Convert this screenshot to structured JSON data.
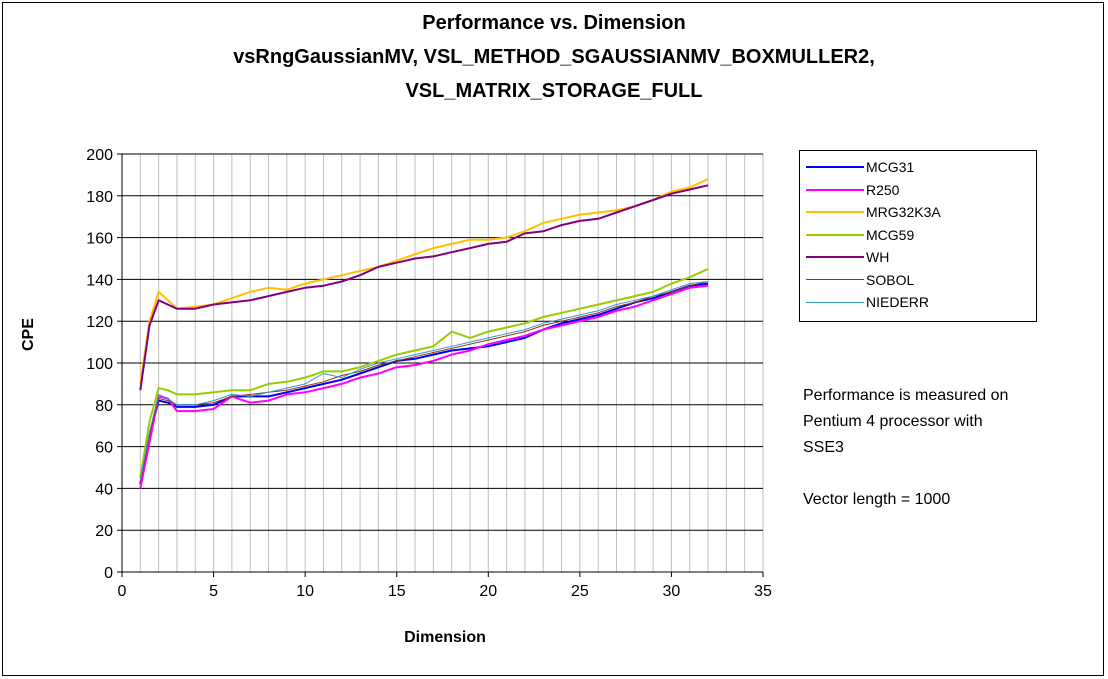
{
  "chart_data": {
    "type": "line",
    "title_lines": [
      "Performance vs. Dimension",
      "vsRngGaussianMV, VSL_METHOD_SGAUSSIANMV_BOXMULLER2,",
      "VSL_MATRIX_STORAGE_FULL"
    ],
    "xlabel": "Dimension",
    "ylabel": "CPE",
    "xlim": [
      0,
      35
    ],
    "ylim": [
      0,
      200
    ],
    "xticks": [
      "0",
      "5",
      "10",
      "15",
      "20",
      "25",
      "30",
      "35"
    ],
    "yticks": [
      "0",
      "20",
      "40",
      "60",
      "80",
      "100",
      "120",
      "140",
      "160",
      "180",
      "200"
    ],
    "grid": true,
    "legend_position": "right",
    "annotation": {
      "lines": [
        "Performance is measured on",
        "Pentium 4 processor with",
        "SSE3",
        "",
        "Vector length = 1000"
      ]
    },
    "series": [
      {
        "name": "MCG31",
        "color": "#0000ff",
        "x": [
          1,
          1.5,
          2,
          2.5,
          3,
          4,
          5,
          6,
          7,
          8,
          9,
          10,
          11,
          12,
          13,
          14,
          15,
          16,
          17,
          18,
          19,
          20,
          21,
          22,
          23,
          24,
          25,
          26,
          27,
          28,
          29,
          30,
          31,
          32
        ],
        "values": [
          42,
          65,
          82,
          81,
          79,
          79,
          80,
          84,
          84,
          84,
          86,
          88,
          90,
          92,
          95,
          98,
          101,
          102,
          104,
          106,
          107,
          108,
          110,
          112,
          116,
          119,
          121,
          123,
          126,
          129,
          131,
          134,
          137,
          138
        ]
      },
      {
        "name": "R250",
        "color": "#ff00ff",
        "x": [
          1,
          1.5,
          2,
          2.5,
          3,
          4,
          5,
          6,
          7,
          8,
          9,
          10,
          11,
          12,
          13,
          14,
          15,
          16,
          17,
          18,
          19,
          20,
          21,
          22,
          23,
          24,
          25,
          26,
          27,
          28,
          29,
          30,
          31,
          32
        ],
        "values": [
          40,
          62,
          84,
          83,
          77,
          77,
          78,
          84,
          81,
          82,
          85,
          86,
          88,
          90,
          93,
          95,
          98,
          99,
          101,
          104,
          106,
          109,
          111,
          113,
          116,
          118,
          120,
          122,
          125,
          127,
          130,
          133,
          136,
          137
        ]
      },
      {
        "name": "MRG32K3A",
        "color": "#ffc000",
        "x": [
          1,
          1.5,
          2,
          2.5,
          3,
          4,
          5,
          6,
          7,
          8,
          9,
          10,
          11,
          12,
          13,
          14,
          15,
          16,
          17,
          18,
          19,
          20,
          21,
          22,
          23,
          24,
          25,
          26,
          27,
          28,
          29,
          30,
          31,
          32
        ],
        "values": [
          90,
          120,
          134,
          130,
          126,
          127,
          128,
          131,
          134,
          136,
          135,
          138,
          140,
          142,
          144,
          146,
          149,
          152,
          155,
          157,
          159,
          159,
          160,
          163,
          167,
          169,
          171,
          172,
          173,
          175,
          178,
          182,
          184,
          188
        ]
      },
      {
        "name": "MCG59",
        "color": "#99cc00",
        "x": [
          1,
          1.5,
          2,
          2.5,
          3,
          4,
          5,
          6,
          7,
          8,
          9,
          10,
          11,
          12,
          13,
          14,
          15,
          16,
          17,
          18,
          19,
          20,
          21,
          22,
          23,
          24,
          25,
          26,
          27,
          28,
          29,
          30,
          31,
          32
        ],
        "values": [
          45,
          72,
          88,
          87,
          85,
          85,
          86,
          87,
          87,
          90,
          91,
          93,
          96,
          96,
          98,
          101,
          104,
          106,
          108,
          115,
          112,
          115,
          117,
          119,
          122,
          124,
          126,
          128,
          130,
          132,
          134,
          138,
          141,
          145
        ]
      },
      {
        "name": "WH",
        "color": "#800080",
        "x": [
          1,
          1.5,
          2,
          2.5,
          3,
          4,
          5,
          6,
          7,
          8,
          9,
          10,
          11,
          12,
          13,
          14,
          15,
          16,
          17,
          18,
          19,
          20,
          21,
          22,
          23,
          24,
          25,
          26,
          27,
          28,
          29,
          30,
          31,
          32
        ],
        "values": [
          87,
          118,
          130,
          128,
          126,
          126,
          128,
          129,
          130,
          132,
          134,
          136,
          137,
          139,
          142,
          146,
          148,
          150,
          151,
          153,
          155,
          157,
          158,
          162,
          163,
          166,
          168,
          169,
          172,
          175,
          178,
          181,
          183,
          185
        ]
      },
      {
        "name": "SOBOL",
        "color": "#993300",
        "x": [
          1,
          1.5,
          2,
          2.5,
          3,
          4,
          5,
          6,
          7,
          8,
          9,
          10,
          11,
          12,
          13,
          14,
          15,
          16,
          17,
          18,
          19,
          20,
          21,
          22,
          23,
          24,
          25,
          26,
          27,
          28,
          29,
          30,
          31,
          32
        ],
        "values": [
          43,
          66,
          83,
          82,
          80,
          80,
          81,
          84,
          85,
          86,
          87,
          89,
          91,
          94,
          96,
          99,
          101,
          103,
          105,
          107,
          109,
          111,
          113,
          115,
          118,
          120,
          122,
          124,
          127,
          129,
          132,
          134,
          137,
          139
        ]
      },
      {
        "name": "NIEDERR",
        "color": "#3399cc",
        "x": [
          1,
          1.5,
          2,
          2.5,
          3,
          4,
          5,
          6,
          7,
          8,
          9,
          10,
          11,
          12,
          13,
          14,
          15,
          16,
          17,
          18,
          19,
          20,
          21,
          22,
          23,
          24,
          25,
          26,
          27,
          28,
          29,
          30,
          31,
          32
        ],
        "values": [
          44,
          67,
          85,
          83,
          80,
          80,
          82,
          85,
          84,
          86,
          88,
          90,
          95,
          93,
          97,
          100,
          102,
          104,
          106,
          108,
          110,
          112,
          114,
          116,
          119,
          121,
          123,
          125,
          128,
          130,
          132,
          135,
          138,
          139
        ]
      }
    ]
  }
}
